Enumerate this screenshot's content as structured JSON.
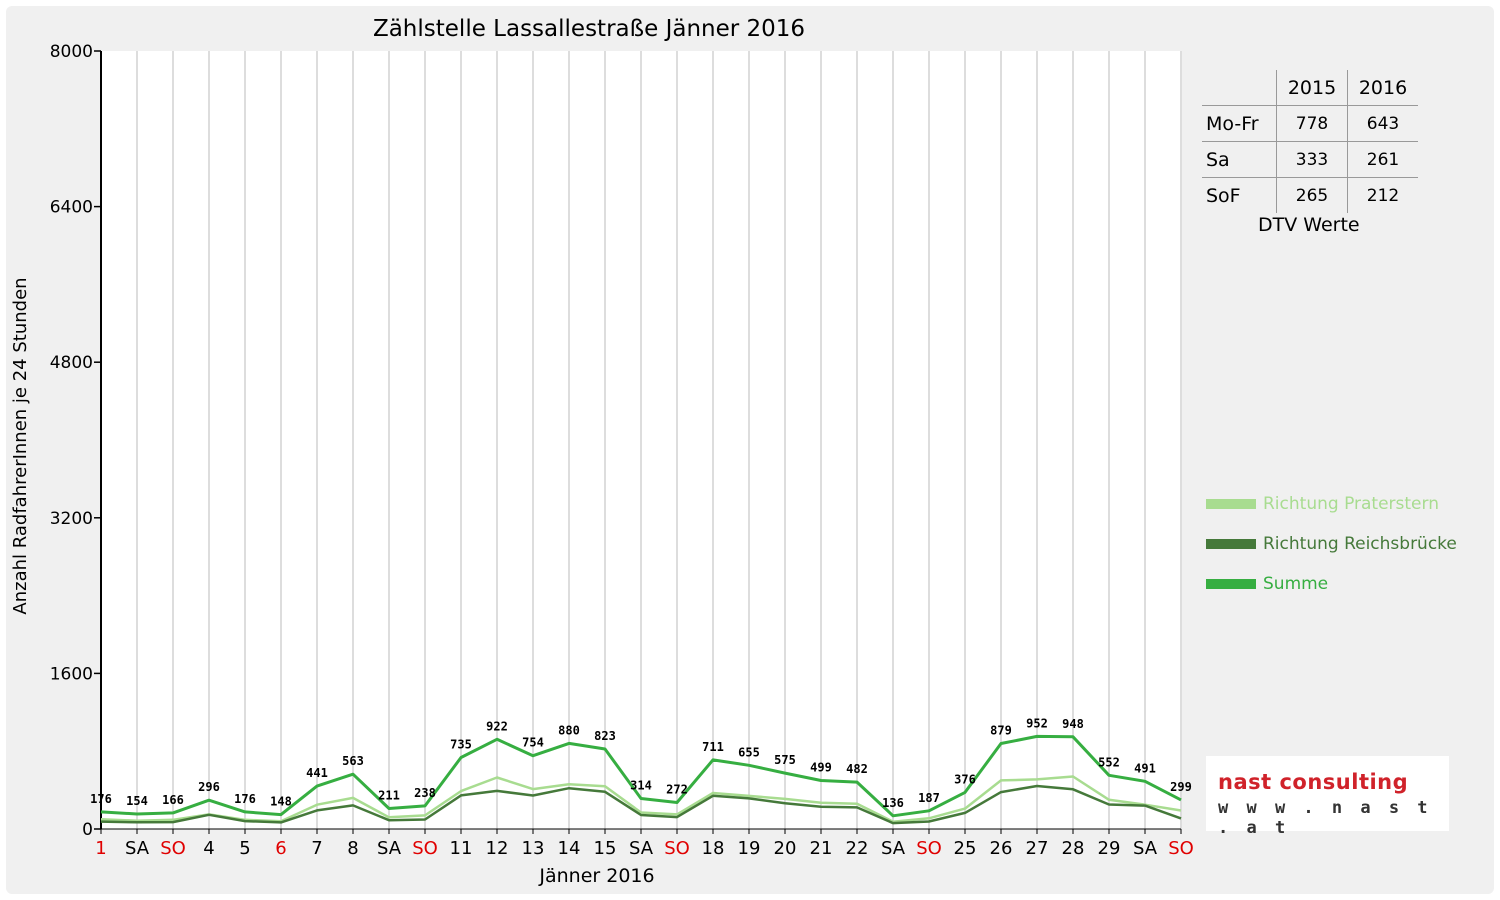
{
  "chart_data": {
    "type": "line",
    "title": "Zählstelle Lassallestraße Jänner 2016",
    "xlabel": "Jänner 2016",
    "ylabel": "Anzahl RadfahrerInnen je 24 Stunden",
    "ylim": [
      0,
      8000
    ],
    "yticks": [
      "0",
      "1600",
      "3200",
      "4800",
      "6400",
      "8000"
    ],
    "grid": "vertical",
    "legend_position": "right",
    "categories": [
      "1",
      "SA",
      "SO",
      "4",
      "5",
      "6",
      "7",
      "8",
      "SA",
      "SO",
      "11",
      "12",
      "13",
      "14",
      "15",
      "SA",
      "SO",
      "18",
      "19",
      "20",
      "21",
      "22",
      "SA",
      "SO",
      "25",
      "26",
      "27",
      "28",
      "29",
      "SA",
      "SO"
    ],
    "category_colors": [
      "#e00000",
      "#000000",
      "#e00000",
      "#000000",
      "#000000",
      "#e00000",
      "#000000",
      "#000000",
      "#000000",
      "#e00000",
      "#000000",
      "#000000",
      "#000000",
      "#000000",
      "#000000",
      "#000000",
      "#e00000",
      "#000000",
      "#000000",
      "#000000",
      "#000000",
      "#000000",
      "#000000",
      "#e00000",
      "#000000",
      "#000000",
      "#000000",
      "#000000",
      "#000000",
      "#000000",
      "#e00000"
    ],
    "series": [
      {
        "name": "Richtung Praterstern",
        "color": "#a8dc90",
        "values": [
          100,
          85,
          95,
          150,
          95,
          80,
          250,
          320,
          120,
          140,
          390,
          530,
          410,
          460,
          440,
          170,
          150,
          370,
          340,
          310,
          270,
          260,
          75,
          110,
          210,
          500,
          510,
          540,
          300,
          250,
          190
        ]
      },
      {
        "name": "Richtung Reichsbrücke",
        "color": "#45793a",
        "values": [
          76,
          69,
          71,
          146,
          81,
          68,
          191,
          243,
          91,
          98,
          345,
          392,
          344,
          420,
          383,
          144,
          122,
          341,
          315,
          265,
          229,
          222,
          61,
          77,
          166,
          379,
          442,
          408,
          252,
          241,
          109
        ]
      },
      {
        "name": "Summe",
        "color": "#36ae41",
        "values": [
          176,
          154,
          166,
          296,
          176,
          148,
          441,
          563,
          211,
          238,
          735,
          922,
          754,
          880,
          823,
          314,
          272,
          711,
          655,
          575,
          499,
          482,
          136,
          187,
          376,
          879,
          952,
          948,
          552,
          491,
          299
        ]
      }
    ],
    "data_labels": [
      "176",
      "154",
      "166",
      "296",
      "176",
      "148",
      "441",
      "563",
      "211",
      "238",
      "735",
      "922",
      "754",
      "880",
      "823",
      "314",
      "272",
      "711",
      "655",
      "575",
      "499",
      "482",
      "136",
      "187",
      "376",
      "879",
      "952",
      "948",
      "552",
      "491",
      "299"
    ]
  },
  "dtv_table": {
    "headers": [
      "2015",
      "2016"
    ],
    "rows": [
      {
        "label": "Mo-Fr",
        "v2015": "778",
        "v2016": "643"
      },
      {
        "label": "Sa",
        "v2015": "333",
        "v2016": "261"
      },
      {
        "label": "SoF",
        "v2015": "265",
        "v2016": "212"
      }
    ],
    "caption": "DTV Werte"
  },
  "logo": {
    "name": "nast consulting",
    "url": "w w w . n a s t . a t",
    "name_color": "#d0222a",
    "accent_color": "#555555"
  }
}
